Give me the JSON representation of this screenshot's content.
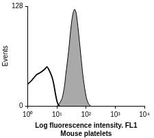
{
  "chart_data": {
    "type": "line",
    "x_label": [
      "Log fluorescence intensity. FL1",
      "Mouse platelets"
    ],
    "y_label": "Events",
    "log": "x",
    "grid": false,
    "xlim": [
      1,
      10000
    ],
    "xticks": [
      {
        "value": 1,
        "label": "10⁰"
      },
      {
        "value": 10,
        "label": "10¹"
      },
      {
        "value": 100,
        "label": "10²"
      },
      {
        "value": 1000,
        "label": "10³"
      },
      {
        "value": 10000,
        "label": "10⁴"
      }
    ],
    "ylim": [
      0,
      128
    ],
    "yticks": [
      0,
      128
    ],
    "series": [
      {
        "type": "line",
        "color": "#000000",
        "x": [
          1,
          1.3,
          1.6,
          2,
          2.5,
          3,
          3.5,
          4,
          4.5,
          5,
          5.5,
          6,
          7,
          8,
          9,
          10,
          11,
          12
        ],
        "values": [
          28,
          32,
          36,
          40,
          42,
          44,
          46,
          48,
          50,
          48,
          45,
          42,
          35,
          25,
          14,
          6,
          2,
          0
        ]
      },
      {
        "type": "area",
        "color": "#a9a9a9",
        "x": [
          10,
          12,
          15,
          18,
          20,
          25,
          30,
          35,
          40,
          45,
          50,
          60,
          70,
          80,
          100,
          120,
          140
        ],
        "values": [
          0,
          3,
          10,
          25,
          40,
          70,
          100,
          118,
          124,
          120,
          108,
          80,
          55,
          35,
          12,
          3,
          0
        ]
      }
    ]
  }
}
